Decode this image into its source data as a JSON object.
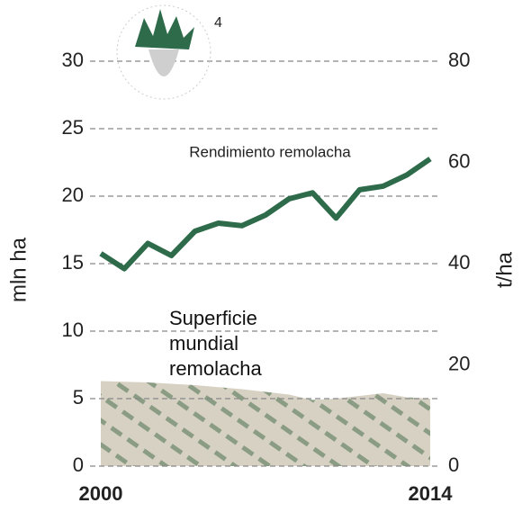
{
  "chart_data": {
    "type": "line",
    "footnote": "4",
    "x": [
      2000,
      2001,
      2002,
      2003,
      2004,
      2005,
      2006,
      2007,
      2008,
      2009,
      2010,
      2011,
      2012,
      2013,
      2014
    ],
    "xlim": [
      2000,
      2014
    ],
    "xticks": [
      2000,
      2014
    ],
    "ylabel": "mln ha",
    "y2label": "t/ha",
    "ylim": [
      0,
      30
    ],
    "yticks": [
      0,
      5,
      10,
      15,
      20,
      25,
      30
    ],
    "y2lim": [
      0,
      80
    ],
    "y2ticks": [
      0,
      20,
      40,
      60,
      80
    ],
    "grid": true,
    "series": [
      {
        "name": "Superficie mundial remolacha",
        "type": "area",
        "color": "#d6d1c2",
        "values": [
          6.3,
          6.25,
          6.2,
          6.1,
          6.0,
          5.85,
          5.7,
          5.5,
          5.3,
          4.9,
          5.0,
          5.2,
          5.4,
          5.1,
          5.0
        ]
      },
      {
        "name": "Rendimiento remolacha",
        "type": "line",
        "color": "#2e6b4a",
        "axis": "y2",
        "values": [
          42,
          39,
          44,
          41.6,
          46.4,
          48,
          47.5,
          49.6,
          52.8,
          54,
          49,
          54.6,
          55.3,
          57.5,
          60.7
        ]
      }
    ]
  }
}
